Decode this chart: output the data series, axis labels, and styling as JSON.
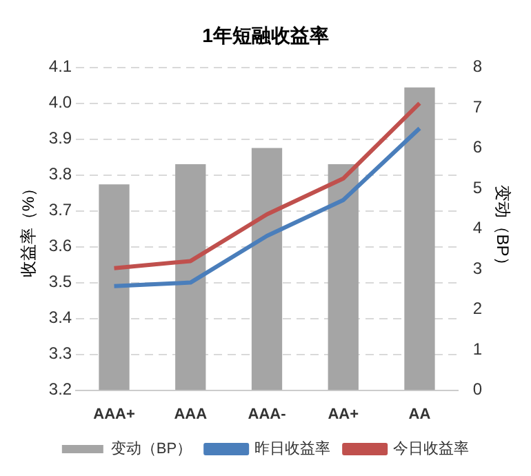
{
  "chart_data": {
    "type": "bar",
    "title": "1年短融收益率",
    "ylabel": "收益率（%）",
    "y2label": "变动（BP）",
    "categories": [
      "AAA+",
      "AAA",
      "AAA-",
      "AA+",
      "AA"
    ],
    "series": [
      {
        "name": "变动（BP）",
        "axis": "y2",
        "color": "#a5a5a5",
        "values": [
          5.1,
          5.6,
          6.0,
          5.6,
          7.5
        ]
      },
      {
        "name": "昨日收益率",
        "type": "line",
        "color": "#4a7ebb",
        "values": [
          3.49,
          3.5,
          3.63,
          3.73,
          3.93
        ]
      },
      {
        "name": "今日收益率",
        "type": "line",
        "color": "#c0504d",
        "values": [
          3.54,
          3.56,
          3.69,
          3.79,
          4.0
        ]
      }
    ],
    "ylim": [
      3.2,
      4.1
    ],
    "yticks": [
      3.2,
      3.3,
      3.4,
      3.5,
      3.6,
      3.7,
      3.8,
      3.9,
      {
        "value": 4.0,
        "label": "4.0"
      },
      4.1
    ],
    "y2lim": [
      0,
      8
    ],
    "y2ticks": [
      0,
      1,
      2,
      3,
      4,
      5,
      6,
      7,
      8
    ],
    "grid": "y",
    "legend": "bottom",
    "marker": "none",
    "line_style": "solid"
  }
}
